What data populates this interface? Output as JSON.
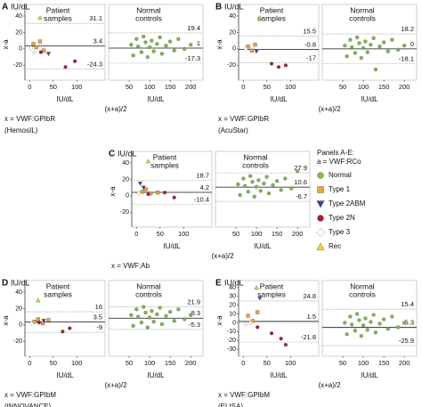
{
  "chart_data": [
    {
      "type": "scatter",
      "panel": "A",
      "ylabel_unit": "IU/dL",
      "ylabel": "x-a",
      "xlabel": "(x+a)/2",
      "notes": [
        "x = VWF:GPIbR",
        "(HemosIL)"
      ],
      "ylim": [
        -38,
        54
      ],
      "yticks": [
        40,
        20,
        0,
        -20
      ],
      "subplots": [
        {
          "title": [
            "Patient",
            "samples"
          ],
          "xlabel": "IU/dL",
          "xlim": [
            -10,
            160
          ],
          "xticks": [
            0,
            50,
            100
          ],
          "limits": {
            "upper": 31.1,
            "mean": 3.4,
            "lower": -24.3
          },
          "series": [
            {
              "name": "Type 1",
              "x": [
                8,
                14,
                22,
                30
              ],
              "y": [
                6,
                2,
                9,
                -2
              ]
            },
            {
              "name": "Type 2ABM",
              "x": [
                40
              ],
              "y": [
                -6
              ]
            },
            {
              "name": "Type 2N",
              "x": [
                24,
                76,
                96
              ],
              "y": [
                -4,
                -22,
                -15
              ]
            },
            {
              "name": "Type 3",
              "x": [
                3,
                10
              ],
              "y": [
                1,
                -4
              ]
            },
            {
              "name": "Rec",
              "x": [
                22
              ],
              "y": [
                38
              ]
            }
          ]
        },
        {
          "title": [
            "Normal",
            "controls"
          ],
          "xlabel": "IU/dL",
          "xlim": [
            0,
            230
          ],
          "xticks": [
            50,
            100,
            150,
            200
          ],
          "limits": {
            "upper": 19.4,
            "mean": 1,
            "lower": -17.3
          },
          "series": [
            {
              "name": "Normal",
              "x": [
                55,
                60,
                68,
                72,
                80,
                85,
                90,
                95,
                100,
                105,
                110,
                118,
                125,
                130,
                140,
                150,
                160,
                170,
                185,
                200
              ],
              "y": [
                5,
                -8,
                12,
                3,
                -4,
                15,
                8,
                -10,
                2,
                10,
                -3,
                6,
                14,
                -6,
                4,
                9,
                -2,
                12,
                0,
                5
              ]
            }
          ]
        }
      ]
    },
    {
      "type": "scatter",
      "panel": "B",
      "ylabel_unit": "IU/dL",
      "ylabel": "x-a",
      "xlabel": "(x+a)/2",
      "notes": [
        "x = VWF:GPIbR",
        "(AcuStar)"
      ],
      "ylim": [
        -38,
        54
      ],
      "yticks": [
        40,
        20,
        0,
        -20
      ],
      "subplots": [
        {
          "title": [
            "Patient",
            "samples"
          ],
          "xlabel": "IU/dL",
          "xlim": [
            -10,
            160
          ],
          "xticks": [
            0,
            50,
            100
          ],
          "limits": {
            "upper": 15.5,
            "mean": -0.8,
            "lower": -17
          },
          "series": [
            {
              "name": "Type 1",
              "x": [
                10,
                18,
                25
              ],
              "y": [
                3,
                -2,
                5
              ]
            },
            {
              "name": "Type 2ABM",
              "x": [
                28
              ],
              "y": [
                -3
              ]
            },
            {
              "name": "Type 2N",
              "x": [
                60,
                75,
                90
              ],
              "y": [
                -18,
                -22,
                -20
              ]
            },
            {
              "name": "Type 3",
              "x": [
                5
              ],
              "y": [
                0
              ]
            },
            {
              "name": "Rec",
              "x": [
                35
              ],
              "y": [
                38
              ]
            }
          ]
        },
        {
          "title": [
            "Normal",
            "controls"
          ],
          "xlabel": "IU/dL",
          "xlim": [
            0,
            230
          ],
          "xticks": [
            50,
            100,
            150,
            200
          ],
          "limits": {
            "upper": 18.2,
            "mean": 0,
            "lower": -18.1
          },
          "series": [
            {
              "name": "Normal",
              "x": [
                55,
                60,
                68,
                72,
                80,
                85,
                90,
                95,
                100,
                105,
                110,
                118,
                125,
                130,
                140,
                150,
                160,
                170,
                185,
                200
              ],
              "y": [
                4,
                -9,
                11,
                2,
                -5,
                14,
                7,
                -11,
                1,
                9,
                -4,
                5,
                13,
                -25,
                3,
                8,
                -3,
                11,
                -1,
                4
              ]
            }
          ]
        }
      ]
    },
    {
      "type": "scatter",
      "panel": "C",
      "ylabel_unit": "IU/dL",
      "ylabel": "x-a",
      "xlabel": "(x+a)/2",
      "notes": [
        "x = VWF:Ab"
      ],
      "ylim": [
        -38,
        54
      ],
      "yticks": [
        40,
        20,
        0,
        -20
      ],
      "subplots": [
        {
          "title": [
            "Patient",
            "samples"
          ],
          "xlabel": "IU/dL",
          "xlim": [
            -10,
            160
          ],
          "xticks": [
            0,
            50,
            100
          ],
          "limits": {
            "upper": 18.7,
            "mean": 4.2,
            "lower": -10.4
          },
          "series": [
            {
              "name": "Type 1",
              "x": [
                12,
                20,
                30,
                45
              ],
              "y": [
                5,
                8,
                3,
                4
              ]
            },
            {
              "name": "Type 2ABM",
              "x": [
                8,
                15
              ],
              "y": [
                15,
                10
              ]
            },
            {
              "name": "Type 2N",
              "x": [
                25,
                60,
                80
              ],
              "y": [
                2,
                4,
                -2
              ]
            },
            {
              "name": "Type 3",
              "x": [
                5
              ],
              "y": [
                3
              ]
            },
            {
              "name": "Rec",
              "x": [
                25
              ],
              "y": [
                42
              ]
            }
          ]
        },
        {
          "title": [
            "Normal",
            "controls"
          ],
          "xlabel": "IU/dL",
          "xlim": [
            0,
            230
          ],
          "xticks": [
            50,
            100,
            150,
            200
          ],
          "limits": {
            "upper": 27.9,
            "mean": 10.6,
            "lower": -6.7
          },
          "series": [
            {
              "name": "Normal",
              "x": [
                55,
                60,
                68,
                72,
                80,
                85,
                90,
                95,
                100,
                105,
                110,
                118,
                125,
                130,
                140,
                150,
                160,
                170,
                185,
                200
              ],
              "y": [
                14,
                1,
                21,
                12,
                5,
                24,
                17,
                -1,
                11,
                19,
                6,
                15,
                23,
                3,
                13,
                18,
                7,
                21,
                9,
                30
              ]
            }
          ]
        }
      ]
    },
    {
      "type": "scatter",
      "panel": "D",
      "ylabel_unit": "IU/dL",
      "ylabel": "x-a",
      "xlabel": "(x+a)/2",
      "notes": [
        "x = VWF:GPIbM",
        "(INNOVANCE)"
      ],
      "ylim": [
        -38,
        54
      ],
      "yticks": [
        40,
        20,
        0,
        -20
      ],
      "subplots": [
        {
          "title": [
            "Patient",
            "samples"
          ],
          "xlabel": "IU/dL",
          "xlim": [
            -10,
            160
          ],
          "xticks": [
            0,
            50,
            100
          ],
          "limits": {
            "upper": 16,
            "mean": 3.5,
            "lower": -9
          },
          "series": [
            {
              "name": "Type 1",
              "x": [
                10,
                18,
                28,
                40
              ],
              "y": [
                4,
                7,
                2,
                6
              ]
            },
            {
              "name": "Type 2ABM",
              "x": [
                30
              ],
              "y": [
                5
              ]
            },
            {
              "name": "Type 2N",
              "x": [
                20,
                70,
                85
              ],
              "y": [
                3,
                -8,
                -4
              ]
            },
            {
              "name": "Type 3",
              "x": [
                4
              ],
              "y": [
                2
              ]
            },
            {
              "name": "Rec",
              "x": [
                18
              ],
              "y": [
                30
              ]
            }
          ]
        },
        {
          "title": [
            "Normal",
            "controls"
          ],
          "xlabel": "IU/dL",
          "xlim": [
            0,
            230
          ],
          "xticks": [
            50,
            100,
            150,
            200
          ],
          "limits": {
            "upper": 21.9,
            "mean": 8.3,
            "lower": -5.3
          },
          "series": [
            {
              "name": "Normal",
              "x": [
                55,
                60,
                68,
                72,
                80,
                85,
                90,
                95,
                100,
                105,
                110,
                118,
                125,
                130,
                140,
                150,
                160,
                170,
                185,
                200
              ],
              "y": [
                12,
                -1,
                19,
                10,
                3,
                22,
                15,
                -3,
                9,
                17,
                4,
                13,
                21,
                1,
                11,
                16,
                5,
                19,
                7,
                12
              ]
            }
          ]
        }
      ]
    },
    {
      "type": "scatter",
      "panel": "E",
      "ylabel_unit": "IU/dL",
      "ylabel": "x-a",
      "xlabel": "(x+a)/2",
      "notes": [
        "x = VWF:GPIbM",
        "(ELISA)"
      ],
      "ylim": [
        -38,
        48
      ],
      "yticks": [
        40,
        30,
        20,
        10,
        0,
        -10,
        -20,
        -30
      ],
      "subplots": [
        {
          "title": [
            "Patient",
            "samples"
          ],
          "xlabel": "IU/dL",
          "xlim": [
            -10,
            160
          ],
          "xticks": [
            0,
            50,
            100
          ],
          "limits": {
            "upper": 24.8,
            "mean": 1.5,
            "lower": -21.8
          },
          "series": [
            {
              "name": "Type 1",
              "x": [
                10,
                20,
                30
              ],
              "y": [
                8,
                2,
                12
              ]
            },
            {
              "name": "Type 2ABM",
              "x": [
                35
              ],
              "y": [
                28
              ]
            },
            {
              "name": "Type 2N",
              "x": [
                30,
                60,
                80,
                90
              ],
              "y": [
                -5,
                -12,
                -18,
                -25
              ]
            },
            {
              "name": "Type 3",
              "x": [
                5,
                15
              ],
              "y": [
                -2,
                0
              ]
            },
            {
              "name": "Rec",
              "x": [
                28
              ],
              "y": [
                40
              ]
            }
          ]
        },
        {
          "title": [
            "Normal",
            "controls"
          ],
          "xlabel": "IU/dL",
          "xlim": [
            0,
            230
          ],
          "xticks": [
            50,
            100,
            150,
            200
          ],
          "limits": {
            "upper": 15.4,
            "mean": -5.3,
            "lower": -25.9
          },
          "series": [
            {
              "name": "Normal",
              "x": [
                55,
                60,
                68,
                72,
                80,
                85,
                90,
                95,
                100,
                105,
                110,
                118,
                125,
                130,
                140,
                150,
                160,
                170,
                185,
                200
              ],
              "y": [
                0,
                -13,
                7,
                -2,
                -9,
                10,
                3,
                -15,
                -3,
                5,
                -8,
                1,
                9,
                -11,
                -1,
                4,
                -7,
                7,
                -5,
                0
              ]
            }
          ]
        }
      ]
    }
  ],
  "legend": {
    "title": [
      "Panels A-E:",
      "a = VWF:RCo"
    ],
    "items": [
      {
        "name": "Normal",
        "color": "#7cc242",
        "marker": "circle"
      },
      {
        "name": "Type 1",
        "color": "#f4a23a",
        "marker": "square"
      },
      {
        "name": "Type 2ABM",
        "color": "#4b3aa6",
        "marker": "triangle-down"
      },
      {
        "name": "Type 2N",
        "color": "#b3172b",
        "marker": "circle"
      },
      {
        "name": "Type 3",
        "color": "#ffffff",
        "marker": "diamond"
      },
      {
        "name": "Rec",
        "color": "#f2d33b",
        "marker": "triangle-up"
      }
    ]
  }
}
